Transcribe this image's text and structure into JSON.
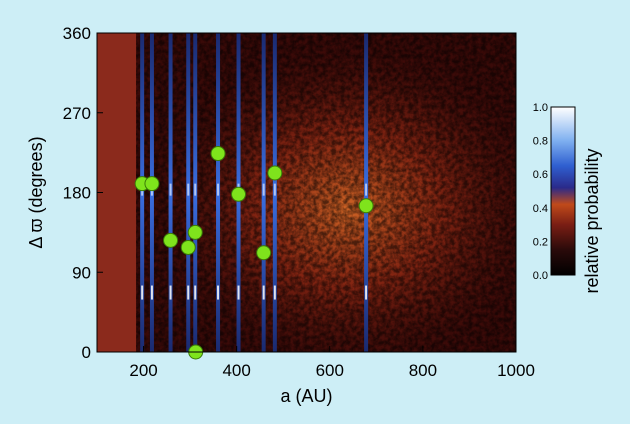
{
  "chart_data": {
    "type": "scatter",
    "title": "",
    "xlabel": "a (AU)",
    "ylabel": "Δ ϖ (degrees)",
    "xlim": [
      100,
      1000
    ],
    "ylim": [
      0,
      360
    ],
    "x_ticks": [
      200,
      400,
      600,
      800,
      1000
    ],
    "y_ticks": [
      0,
      90,
      180,
      270,
      360
    ],
    "background": "2D probability density heatmap (dark red to bright orange), denser near 150-250 degrees",
    "grid": false,
    "points": [
      {
        "x": 197,
        "y": 190
      },
      {
        "x": 218,
        "y": 190
      },
      {
        "x": 258,
        "y": 126
      },
      {
        "x": 296,
        "y": 118
      },
      {
        "x": 311,
        "y": 135
      },
      {
        "x": 312,
        "y": 0
      },
      {
        "x": 360,
        "y": 224
      },
      {
        "x": 404,
        "y": 178
      },
      {
        "x": 458,
        "y": 112
      },
      {
        "x": 482,
        "y": 202
      },
      {
        "x": 678,
        "y": 165
      }
    ],
    "vertical_lines_x": [
      197,
      218,
      258,
      296,
      311,
      360,
      404,
      458,
      482,
      678
    ],
    "colorbar": {
      "label": "relative probability",
      "ticks": [
        "0.0",
        "0.2",
        "0.4",
        "0.6",
        "0.8",
        "1.0"
      ],
      "range": [
        0.0,
        1.0
      ]
    },
    "colors": {
      "background": "#cdeef6",
      "marker": "#7fe31c",
      "marker_edge": "#3a7a08",
      "heat_low": "#2a0505",
      "heat_high": "#f0a040",
      "stripe": "#3a6ee0"
    }
  }
}
